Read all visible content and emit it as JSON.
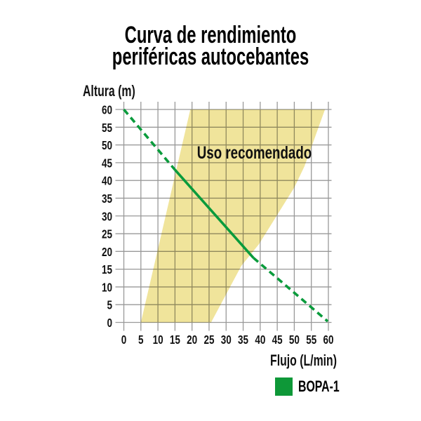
{
  "header": {
    "title_line1": "Curva de rendimiento",
    "title_line2": "periféricas autocebantes"
  },
  "chart_data": {
    "type": "line",
    "title": "Curva de rendimiento periféricas autocebantes",
    "xlabel": "Flujo (L/min)",
    "ylabel": "Altura (m)",
    "xlim": [
      0,
      60
    ],
    "ylim": [
      0,
      60
    ],
    "grid": true,
    "x_ticks": [
      0,
      5,
      10,
      15,
      20,
      25,
      30,
      35,
      40,
      45,
      50,
      55,
      60
    ],
    "y_ticks": [
      0,
      5,
      10,
      15,
      20,
      25,
      30,
      35,
      40,
      45,
      50,
      55,
      60
    ],
    "grid_color": "#999999",
    "series": [
      {
        "name": "BOPA-1",
        "color": "#0a9b3c",
        "segments": [
          {
            "style": "dashed",
            "points": [
              [
                0,
                60
              ],
              [
                15,
                43
              ]
            ]
          },
          {
            "style": "solid",
            "points": [
              [
                15,
                43
              ],
              [
                38,
                18.2
              ]
            ]
          },
          {
            "style": "dashed",
            "points": [
              [
                38,
                18.2
              ],
              [
                59.8,
                0.3
              ]
            ]
          }
        ]
      }
    ],
    "recommended_region": {
      "label": "Uso recomendado",
      "color": "#f0e49b",
      "points": [
        [
          5,
          0
        ],
        [
          19.5,
          60
        ],
        [
          59,
          60
        ],
        [
          53,
          44
        ],
        [
          50,
          38
        ],
        [
          44.8,
          30
        ],
        [
          39.6,
          22
        ],
        [
          34.5,
          16
        ],
        [
          25.6,
          0
        ]
      ]
    },
    "legend": [
      {
        "label": "BOPA-1",
        "color": "#0e9838"
      }
    ]
  }
}
